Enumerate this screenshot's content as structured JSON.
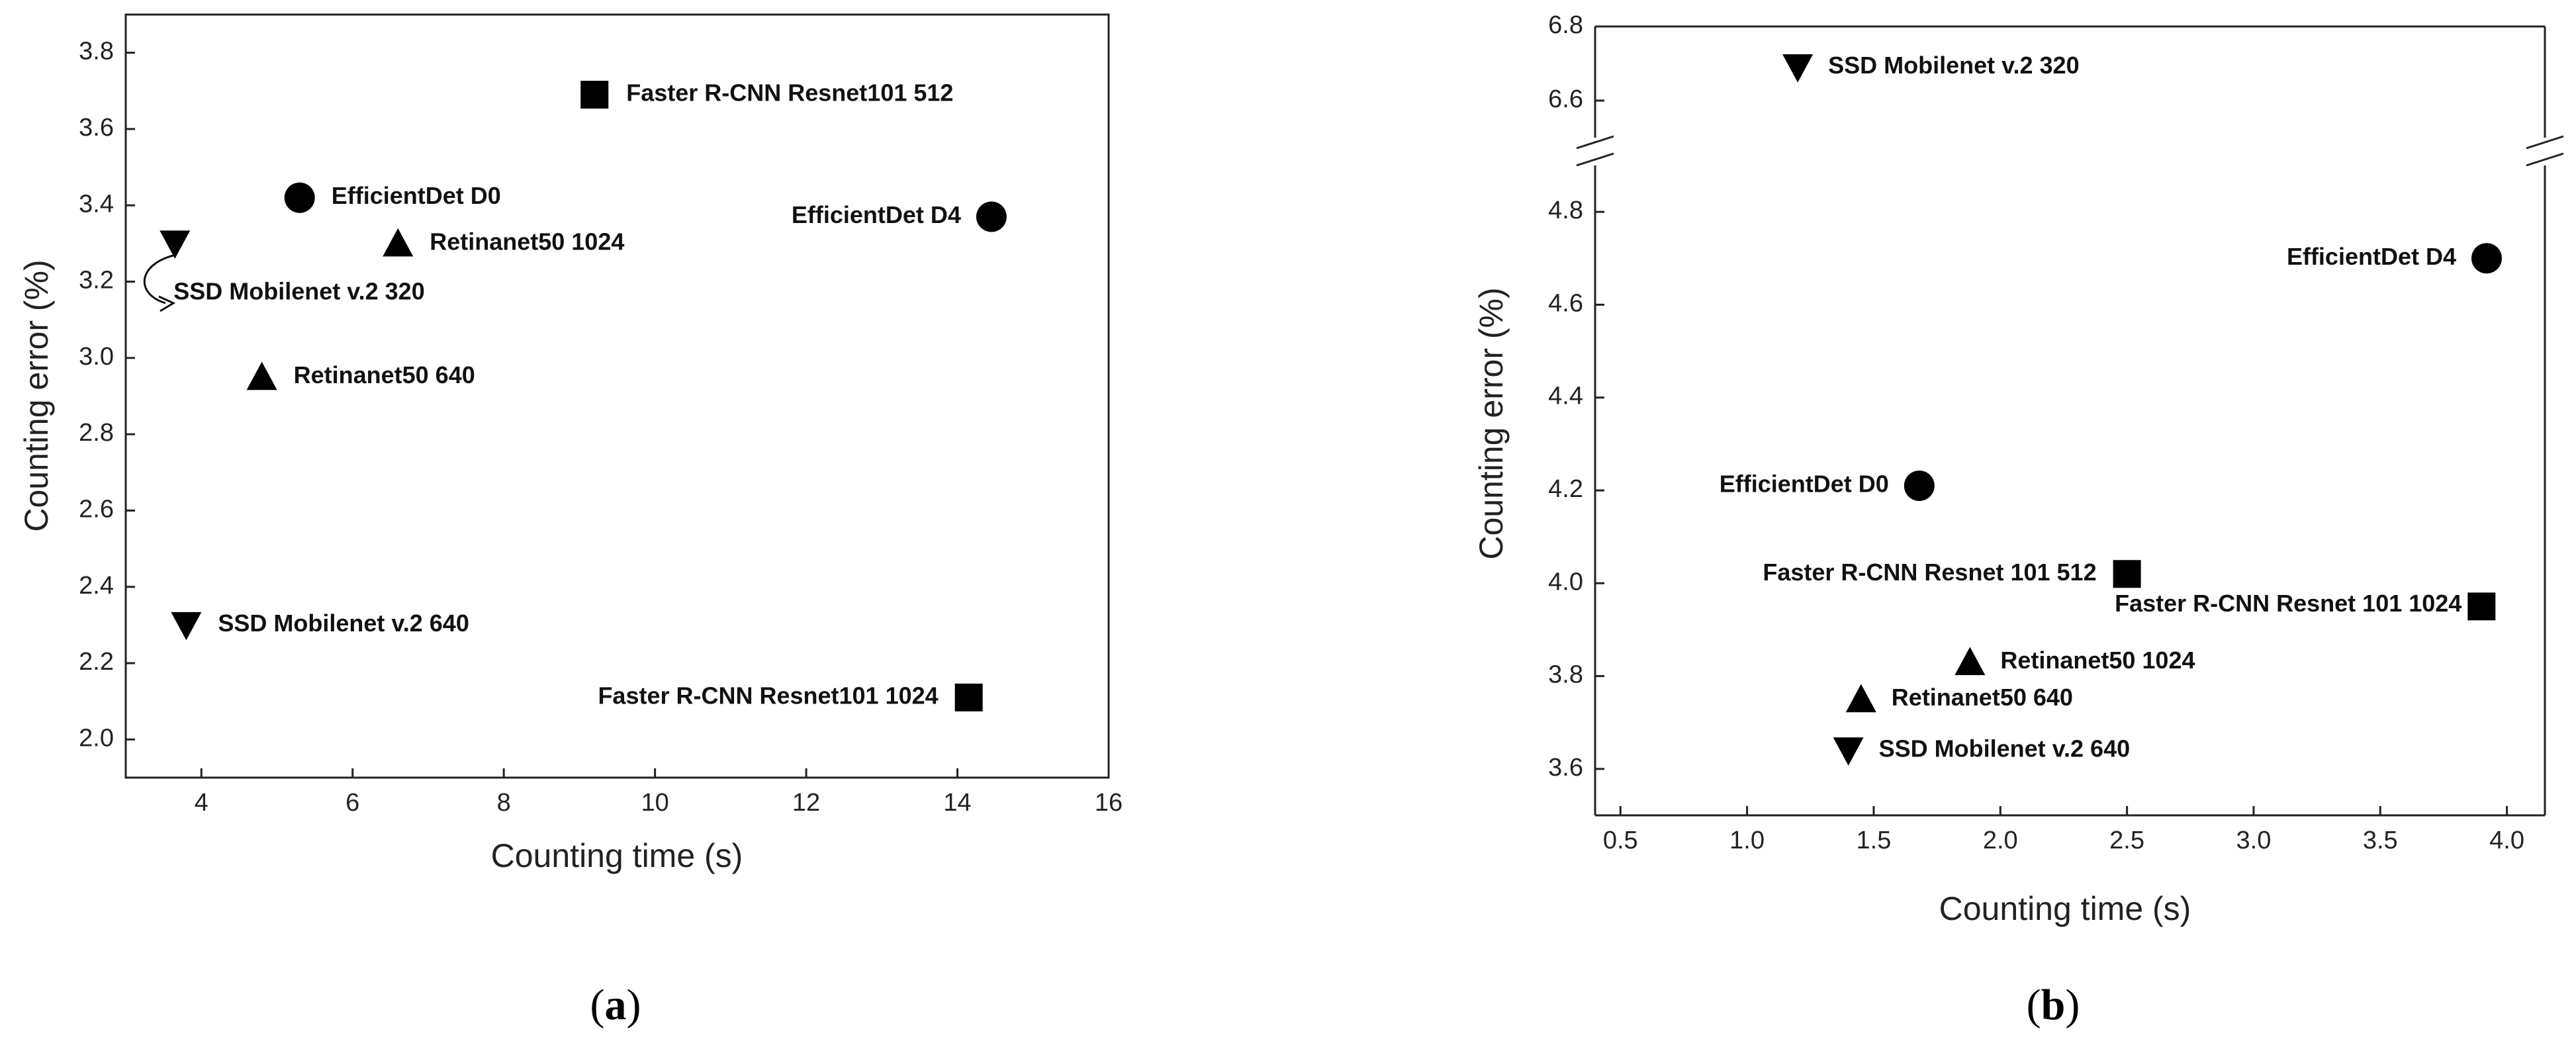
{
  "chart_data": [
    {
      "panel": "a",
      "type": "scatter",
      "xlabel": "Counting time (s)",
      "ylabel": "Counting error (%)",
      "xlim": [
        3,
        16
      ],
      "ylim": [
        1.9,
        3.9
      ],
      "xticks": [
        4,
        6,
        8,
        10,
        12,
        14,
        16
      ],
      "xtick_labels": [
        "4",
        "6",
        "8",
        "10",
        "12",
        "14",
        "16"
      ],
      "yticks": [
        2.0,
        2.2,
        2.4,
        2.6,
        2.8,
        3.0,
        3.2,
        3.4,
        3.6,
        3.8
      ],
      "ytick_labels": [
        "2.0",
        "2.2",
        "2.4",
        "2.6",
        "2.8",
        "3.0",
        "3.2",
        "3.4",
        "3.6",
        "3.8"
      ],
      "points": [
        {
          "label": "Faster R-CNN Resnet101 512",
          "marker": "square",
          "x": 9.2,
          "y": 3.69
        },
        {
          "label": "EfficientDet D0",
          "marker": "circle",
          "x": 5.3,
          "y": 3.42
        },
        {
          "label": "EfficientDet D4",
          "marker": "circle",
          "x": 14.45,
          "y": 3.37
        },
        {
          "label": "SSD Mobilenet v.2 320",
          "marker": "triangle-down",
          "x": 3.65,
          "y": 3.3
        },
        {
          "label": "Retinanet50 1024",
          "marker": "triangle-up",
          "x": 6.6,
          "y": 3.3
        },
        {
          "label": "Retinanet50 640",
          "marker": "triangle-up",
          "x": 4.8,
          "y": 2.95
        },
        {
          "label": "SSD Mobilenet v.2 640",
          "marker": "triangle-down",
          "x": 3.8,
          "y": 2.3
        },
        {
          "label": "Faster R-CNN Resnet101 1024",
          "marker": "square",
          "x": 14.15,
          "y": 2.11
        }
      ],
      "grid": false
    },
    {
      "panel": "b",
      "type": "scatter",
      "xlabel": "Counting time (s)",
      "ylabel": "Counting error (%)",
      "xlim": [
        0.4,
        4.15
      ],
      "ylim": [
        3.5,
        6.8
      ],
      "axis_break_y": [
        4.9,
        6.5
      ],
      "xticks": [
        0.5,
        1.0,
        1.5,
        2.0,
        2.5,
        3.0,
        3.5,
        4.0
      ],
      "xtick_labels": [
        "0.5",
        "1.0",
        "1.5",
        "2.0",
        "2.5",
        "3.0",
        "3.5",
        "4.0"
      ],
      "yticks": [
        3.6,
        3.8,
        4.0,
        4.2,
        4.4,
        4.6,
        4.8,
        6.6,
        6.8
      ],
      "ytick_labels": [
        "3.6",
        "3.8",
        "4.0",
        "4.2",
        "4.4",
        "4.6",
        "4.8",
        "6.6",
        "6.8"
      ],
      "points": [
        {
          "label": "SSD Mobilenet v.2 320",
          "marker": "triangle-down",
          "x": 1.2,
          "y": 6.69
        },
        {
          "label": "EfficientDet D4",
          "marker": "circle",
          "x": 3.92,
          "y": 4.7
        },
        {
          "label": "EfficientDet D0",
          "marker": "circle",
          "x": 1.68,
          "y": 4.21
        },
        {
          "label": "Faster R-CNN Resnet 101 512",
          "marker": "square",
          "x": 2.5,
          "y": 4.02
        },
        {
          "label": "Faster R-CNN Resnet 101 1024",
          "marker": "square",
          "x": 3.9,
          "y": 3.95
        },
        {
          "label": "Retinanet50 1024",
          "marker": "triangle-up",
          "x": 1.88,
          "y": 3.83
        },
        {
          "label": "Retinanet50 640",
          "marker": "triangle-up",
          "x": 1.45,
          "y": 3.75
        },
        {
          "label": "SSD Mobilenet v.2 640",
          "marker": "triangle-down",
          "x": 1.4,
          "y": 3.64
        }
      ],
      "grid": false
    }
  ],
  "captions": {
    "a_open": "(",
    "a_letter": "a",
    "a_close": ")",
    "b_open": "(",
    "b_letter": "b",
    "b_close": ")"
  },
  "colors": {
    "marker": "#000000",
    "axis": "#222222"
  }
}
